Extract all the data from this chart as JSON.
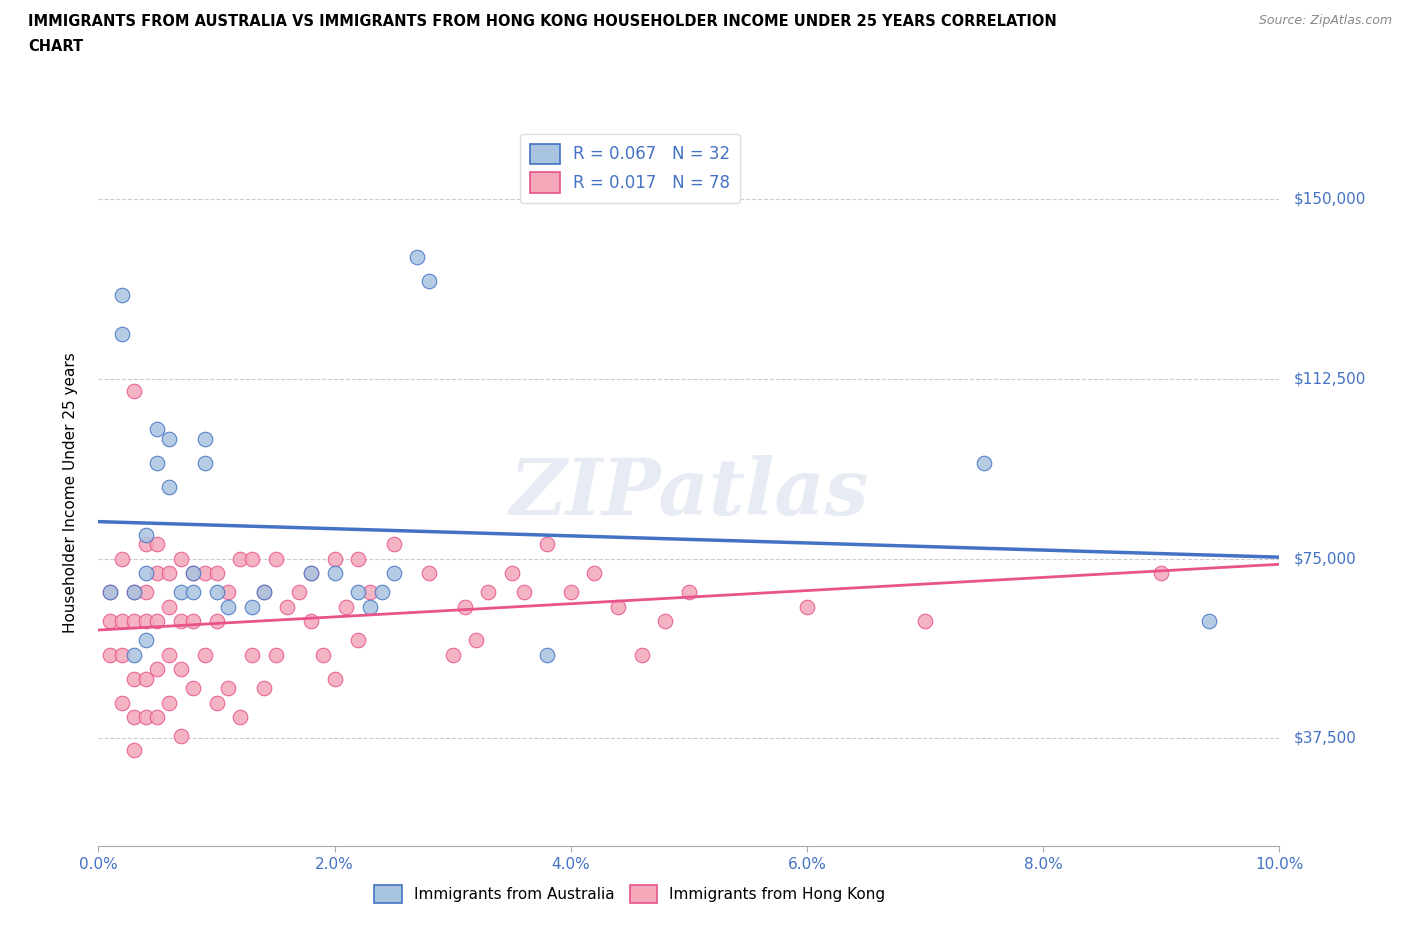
{
  "title_line1": "IMMIGRANTS FROM AUSTRALIA VS IMMIGRANTS FROM HONG KONG HOUSEHOLDER INCOME UNDER 25 YEARS CORRELATION",
  "title_line2": "CHART",
  "source": "Source: ZipAtlas.com",
  "ylabel": "Householder Income Under 25 years",
  "xlim": [
    0.0,
    0.1
  ],
  "ylim": [
    15000,
    162500
  ],
  "yticks": [
    37500,
    75000,
    112500,
    150000
  ],
  "ytick_labels": [
    "$37,500",
    "$75,000",
    "$112,500",
    "$150,000"
  ],
  "xtick_labels": [
    "0.0%",
    "2.0%",
    "4.0%",
    "6.0%",
    "8.0%",
    "10.0%"
  ],
  "xticks": [
    0.0,
    0.02,
    0.04,
    0.06,
    0.08,
    0.1
  ],
  "australia_color": "#a8c4e0",
  "hongkong_color": "#f4a7b9",
  "australia_line_color": "#4472c4",
  "hongkong_line_color": "#e8538a",
  "legend_r_australia": "0.067",
  "legend_n_australia": "32",
  "legend_r_hongkong": "0.017",
  "legend_n_hongkong": "78",
  "watermark": "ZIPatlas",
  "australia_x": [
    0.001,
    0.002,
    0.002,
    0.003,
    0.003,
    0.004,
    0.004,
    0.004,
    0.005,
    0.005,
    0.006,
    0.006,
    0.007,
    0.008,
    0.008,
    0.009,
    0.009,
    0.01,
    0.011,
    0.013,
    0.014,
    0.018,
    0.02,
    0.022,
    0.023,
    0.024,
    0.025,
    0.027,
    0.028,
    0.038,
    0.075,
    0.094
  ],
  "australia_y": [
    68000,
    130000,
    122000,
    55000,
    68000,
    58000,
    72000,
    80000,
    95000,
    102000,
    90000,
    100000,
    68000,
    72000,
    68000,
    95000,
    100000,
    68000,
    65000,
    65000,
    68000,
    72000,
    72000,
    68000,
    65000,
    68000,
    72000,
    138000,
    133000,
    55000,
    95000,
    62000
  ],
  "hongkong_x": [
    0.001,
    0.001,
    0.001,
    0.002,
    0.002,
    0.002,
    0.002,
    0.003,
    0.003,
    0.003,
    0.003,
    0.003,
    0.003,
    0.004,
    0.004,
    0.004,
    0.004,
    0.004,
    0.005,
    0.005,
    0.005,
    0.005,
    0.005,
    0.006,
    0.006,
    0.006,
    0.006,
    0.007,
    0.007,
    0.007,
    0.007,
    0.008,
    0.008,
    0.008,
    0.009,
    0.009,
    0.01,
    0.01,
    0.01,
    0.011,
    0.011,
    0.012,
    0.012,
    0.013,
    0.013,
    0.014,
    0.014,
    0.015,
    0.015,
    0.016,
    0.017,
    0.018,
    0.018,
    0.019,
    0.02,
    0.02,
    0.021,
    0.022,
    0.022,
    0.023,
    0.025,
    0.028,
    0.03,
    0.031,
    0.032,
    0.033,
    0.035,
    0.036,
    0.038,
    0.04,
    0.042,
    0.044,
    0.046,
    0.048,
    0.05,
    0.06,
    0.07,
    0.09
  ],
  "hongkong_y": [
    55000,
    62000,
    68000,
    45000,
    55000,
    62000,
    75000,
    35000,
    42000,
    50000,
    62000,
    68000,
    110000,
    42000,
    50000,
    62000,
    68000,
    78000,
    42000,
    52000,
    62000,
    72000,
    78000,
    45000,
    55000,
    65000,
    72000,
    38000,
    52000,
    62000,
    75000,
    48000,
    62000,
    72000,
    55000,
    72000,
    45000,
    62000,
    72000,
    48000,
    68000,
    42000,
    75000,
    55000,
    75000,
    48000,
    68000,
    55000,
    75000,
    65000,
    68000,
    62000,
    72000,
    55000,
    50000,
    75000,
    65000,
    58000,
    75000,
    68000,
    78000,
    72000,
    55000,
    65000,
    58000,
    68000,
    72000,
    68000,
    78000,
    68000,
    72000,
    65000,
    55000,
    62000,
    68000,
    65000,
    62000,
    72000
  ]
}
